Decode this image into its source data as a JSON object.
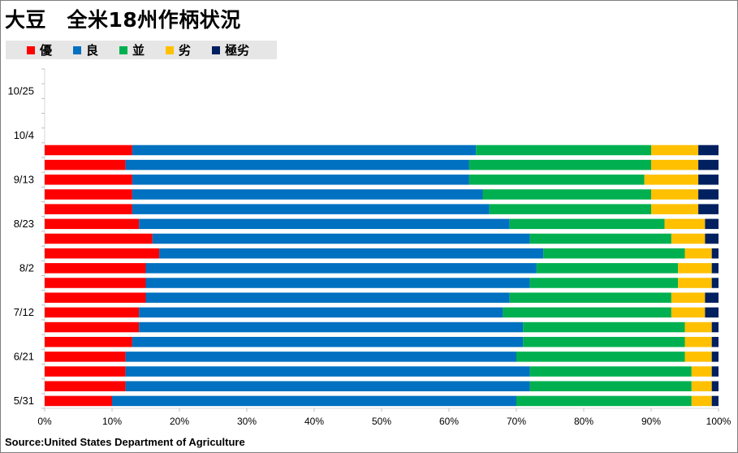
{
  "title": "大豆　全米18州作柄状況",
  "source": "Source:United States Department of Agriculture",
  "colors": {
    "excellent": "#ff0000",
    "good": "#0070c0",
    "fair": "#00b050",
    "poor": "#ffc000",
    "very_poor": "#002060"
  },
  "chart_data": {
    "type": "bar",
    "orientation": "horizontal",
    "stacked": "percent",
    "y_tick_labels": [
      "10/25",
      "10/4",
      "9/13",
      "8/23",
      "8/2",
      "7/12",
      "6/21",
      "5/31"
    ],
    "x_tick_labels": [
      "0%",
      "10%",
      "20%",
      "30%",
      "40%",
      "50%",
      "60%",
      "70%",
      "80%",
      "90%",
      "100%"
    ],
    "xlim": [
      0,
      100
    ],
    "grid": false,
    "legend_position": "top-left",
    "series": [
      {
        "name": "優",
        "color": "#ff0000"
      },
      {
        "name": "良",
        "color": "#0070c0"
      },
      {
        "name": "並",
        "color": "#00b050"
      },
      {
        "name": "劣",
        "color": "#ffc000"
      },
      {
        "name": "極劣",
        "color": "#002060"
      }
    ],
    "rows": [
      {
        "values": [
          10,
          60,
          26,
          3,
          1
        ]
      },
      {
        "values": [
          12,
          60,
          24,
          3,
          1
        ]
      },
      {
        "values": [
          12,
          60,
          24,
          3,
          1
        ]
      },
      {
        "values": [
          12,
          58,
          25,
          4,
          1
        ]
      },
      {
        "values": [
          13,
          58,
          24,
          4,
          1
        ]
      },
      {
        "values": [
          14,
          57,
          24,
          4,
          1
        ]
      },
      {
        "values": [
          14,
          54,
          25,
          5,
          2
        ]
      },
      {
        "values": [
          15,
          54,
          24,
          5,
          2
        ]
      },
      {
        "values": [
          15,
          57,
          22,
          5,
          1
        ]
      },
      {
        "values": [
          15,
          58,
          21,
          5,
          1
        ]
      },
      {
        "values": [
          17,
          57,
          21,
          4,
          1
        ]
      },
      {
        "values": [
          16,
          56,
          21,
          5,
          2
        ]
      },
      {
        "values": [
          14,
          55,
          23,
          6,
          2
        ]
      },
      {
        "values": [
          13,
          53,
          24,
          7,
          3
        ]
      },
      {
        "values": [
          13,
          52,
          25,
          7,
          3
        ]
      },
      {
        "values": [
          13,
          50,
          26,
          8,
          3
        ]
      },
      {
        "values": [
          12,
          51,
          27,
          7,
          3
        ]
      },
      {
        "values": [
          13,
          51,
          26,
          7,
          3
        ]
      }
    ]
  }
}
